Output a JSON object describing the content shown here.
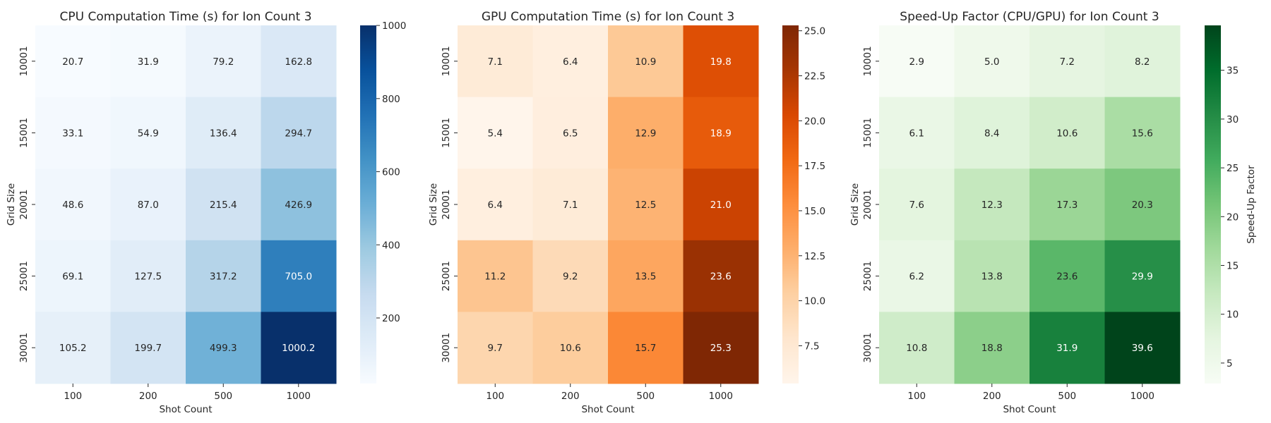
{
  "chart_data": [
    {
      "type": "heatmap",
      "title": "CPU Computation Time (s) for Ion Count 3",
      "xlabel": "Shot Count",
      "ylabel": "Grid Size",
      "x_categories": [
        "100",
        "200",
        "500",
        "1000"
      ],
      "y_categories": [
        "10001",
        "15001",
        "20001",
        "25001",
        "30001"
      ],
      "values": [
        [
          20.7,
          31.9,
          79.2,
          162.8
        ],
        [
          33.1,
          54.9,
          136.4,
          294.7
        ],
        [
          48.6,
          87.0,
          215.4,
          426.9
        ],
        [
          69.1,
          127.5,
          317.2,
          705.0
        ],
        [
          105.2,
          199.7,
          499.3,
          1000.2
        ]
      ],
      "colormap": "Blues",
      "colorbar_label": "",
      "colorbar_range": [
        20.7,
        1000.2
      ],
      "colorbar_ticks": [
        "200",
        "400",
        "600",
        "800",
        "1000"
      ],
      "colorbar_tick_values": [
        200,
        400,
        600,
        800,
        1000
      ]
    },
    {
      "type": "heatmap",
      "title": "GPU Computation Time (s) for Ion Count 3",
      "xlabel": "Shot Count",
      "ylabel": "Grid Size",
      "x_categories": [
        "100",
        "200",
        "500",
        "1000"
      ],
      "y_categories": [
        "10001",
        "15001",
        "20001",
        "25001",
        "30001"
      ],
      "values": [
        [
          7.1,
          6.4,
          10.9,
          19.8
        ],
        [
          5.4,
          6.5,
          12.9,
          18.9
        ],
        [
          6.4,
          7.1,
          12.5,
          21.0
        ],
        [
          11.2,
          9.2,
          13.5,
          23.6
        ],
        [
          9.7,
          10.6,
          15.7,
          25.3
        ]
      ],
      "colormap": "Oranges",
      "colorbar_label": "",
      "colorbar_range": [
        5.4,
        25.3
      ],
      "colorbar_ticks": [
        "7.5",
        "10.0",
        "12.5",
        "15.0",
        "17.5",
        "20.0",
        "22.5",
        "25.0"
      ],
      "colorbar_tick_values": [
        7.5,
        10.0,
        12.5,
        15.0,
        17.5,
        20.0,
        22.5,
        25.0
      ]
    },
    {
      "type": "heatmap",
      "title": "Speed-Up Factor (CPU/GPU) for Ion Count 3",
      "xlabel": "Shot Count",
      "ylabel": "Grid Size",
      "x_categories": [
        "100",
        "200",
        "500",
        "1000"
      ],
      "y_categories": [
        "10001",
        "15001",
        "20001",
        "25001",
        "30001"
      ],
      "values": [
        [
          2.9,
          5.0,
          7.2,
          8.2
        ],
        [
          6.1,
          8.4,
          10.6,
          15.6
        ],
        [
          7.6,
          12.3,
          17.3,
          20.3
        ],
        [
          6.2,
          13.8,
          23.6,
          29.9
        ],
        [
          10.8,
          18.8,
          31.9,
          39.6
        ]
      ],
      "colormap": "Greens",
      "colorbar_label": "Speed-Up Factor",
      "colorbar_range": [
        2.9,
        39.6
      ],
      "colorbar_ticks": [
        "5",
        "10",
        "15",
        "20",
        "25",
        "30",
        "35"
      ],
      "colorbar_tick_values": [
        5,
        10,
        15,
        20,
        25,
        30,
        35
      ]
    }
  ]
}
